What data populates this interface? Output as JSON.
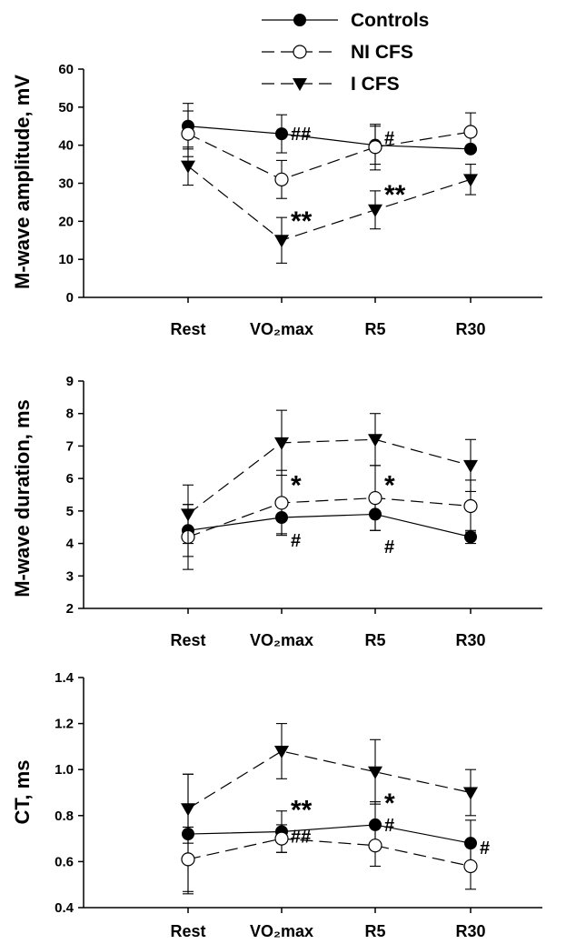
{
  "legend": [
    {
      "name": "Controls",
      "marker": "filled-circle",
      "dash": "solid"
    },
    {
      "name": "NI CFS",
      "marker": "open-circle",
      "dash": "dashed"
    },
    {
      "name": "I CFS",
      "marker": "filled-triangle-down",
      "dash": "dashed"
    }
  ],
  "chart_data": [
    {
      "type": "line",
      "categories": [
        "Rest",
        "VO₂max",
        "R5",
        "R30"
      ],
      "ylabel": "M-wave amplitude, mV",
      "ylim": [
        0,
        60
      ],
      "yticks": [
        "0",
        "10",
        "20",
        "30",
        "40",
        "50",
        "60"
      ],
      "series": [
        {
          "name": "Controls",
          "values": [
            45,
            43,
            40,
            39
          ],
          "err": [
            6,
            5,
            5,
            0
          ]
        },
        {
          "name": "NI CFS",
          "values": [
            43,
            31,
            39.5,
            43.5
          ],
          "err": [
            6,
            5,
            6,
            5
          ]
        },
        {
          "name": "I CFS",
          "values": [
            34.5,
            15,
            23,
            31
          ],
          "err": [
            5,
            6,
            5,
            4
          ]
        }
      ],
      "annotations": [
        {
          "text": "##",
          "category": "VO₂max",
          "y": 43
        },
        {
          "text": "**",
          "category": "VO₂max",
          "y": 21
        },
        {
          "text": "#",
          "category": "R5",
          "y": 42
        },
        {
          "text": "**",
          "category": "R5",
          "y": 28
        }
      ]
    },
    {
      "type": "line",
      "categories": [
        "Rest",
        "VO₂max",
        "R5",
        "R30"
      ],
      "ylabel": "M-wave duration, ms",
      "ylim": [
        2,
        9
      ],
      "yticks": [
        "2",
        "3",
        "4",
        "5",
        "6",
        "7",
        "8",
        "9"
      ],
      "series": [
        {
          "name": "Controls",
          "values": [
            4.4,
            4.8,
            4.9,
            4.2
          ],
          "err": [
            0.8,
            0.5,
            0.5,
            0.2
          ]
        },
        {
          "name": "NI CFS",
          "values": [
            4.2,
            5.25,
            5.4,
            5.15
          ],
          "err": [
            1.0,
            1.0,
            1.0,
            0.8
          ]
        },
        {
          "name": "I CFS",
          "values": [
            4.9,
            7.1,
            7.2,
            6.4
          ],
          "err": [
            0.9,
            1.0,
            0.8,
            0.8
          ]
        }
      ],
      "annotations": [
        {
          "text": "*",
          "category": "VO₂max",
          "y": 5.9
        },
        {
          "text": "#",
          "category": "VO₂max",
          "y": 4.1
        },
        {
          "text": "*",
          "category": "R5",
          "y": 5.9
        },
        {
          "text": "#",
          "category": "R5",
          "y": 3.9
        }
      ]
    },
    {
      "type": "line",
      "categories": [
        "Rest",
        "VO₂max",
        "R5",
        "R30"
      ],
      "ylabel": "CT, ms",
      "ylim": [
        0.4,
        1.4
      ],
      "yticks": [
        "0.4",
        "0.6",
        "0.8",
        "1.0",
        "1.2",
        "1.4"
      ],
      "series": [
        {
          "name": "Controls",
          "values": [
            0.72,
            0.73,
            0.76,
            0.68
          ],
          "err": [
            0.26,
            0.09,
            0.1,
            0.1
          ]
        },
        {
          "name": "NI CFS",
          "values": [
            0.61,
            0.7,
            0.67,
            0.58
          ],
          "err": [
            0.14,
            0.06,
            0.09,
            0.1
          ]
        },
        {
          "name": "I CFS",
          "values": [
            0.83,
            1.08,
            0.99,
            0.9
          ],
          "err": [
            0.15,
            0.12,
            0.14,
            0.1
          ]
        }
      ],
      "annotations": [
        {
          "text": "**",
          "category": "VO₂max",
          "y": 0.84
        },
        {
          "text": "##",
          "category": "VO₂max",
          "y": 0.71
        },
        {
          "text": "*",
          "category": "R5",
          "y": 0.87
        },
        {
          "text": "#",
          "category": "R5",
          "y": 0.76
        },
        {
          "text": "#",
          "category": "R30",
          "y": 0.66
        }
      ]
    }
  ]
}
